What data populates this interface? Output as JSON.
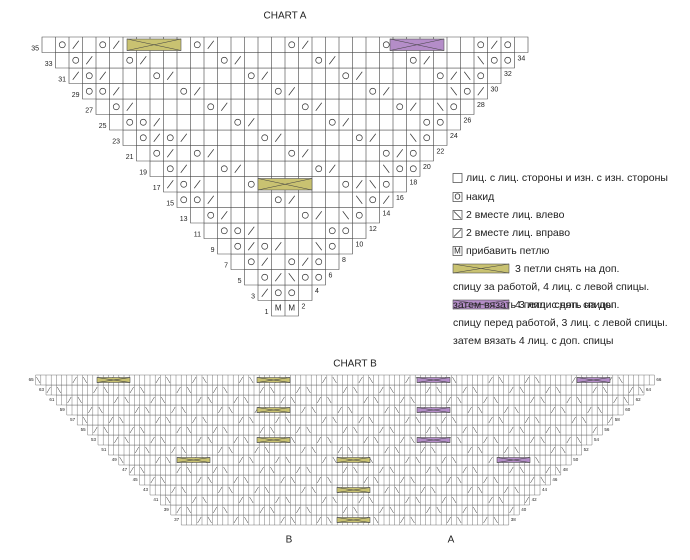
{
  "chart_a": {
    "title": "CHART A",
    "rows_left": [
      "1",
      "3",
      "5",
      "7",
      "9",
      "11",
      "13",
      "15",
      "17",
      "19",
      "21",
      "23",
      "25",
      "27",
      "29",
      "31",
      "33",
      "35"
    ],
    "rows_right": [
      "2",
      "4",
      "6",
      "8",
      "10",
      "12",
      "14",
      "16",
      "18",
      "20",
      "22",
      "24",
      "26",
      "28",
      "30",
      "32",
      "34"
    ],
    "cell_marks": [
      "M",
      "M"
    ]
  },
  "legend": [
    {
      "text": "лиц. с лиц. стороны и изн. с изн. стороны"
    },
    {
      "symbol": "O",
      "text": "накид"
    },
    {
      "text": "2 вместе лиц. влево"
    },
    {
      "text": "2 вместе лиц. вправо"
    },
    {
      "symbol": "M",
      "text": "прибавить петлю"
    },
    {
      "lines": [
        "3 петли снять на доп.",
        "спицу за работой, 4 лиц. с левой спицы.",
        "затем вязать 3 лиц. с доп. спицы"
      ]
    },
    {
      "lines": [
        "4 петли снять на доп.",
        "спицу перед работой, 3 лиц. с левой спицы.",
        "затем вязать 4 лиц. с доп. спицы"
      ]
    }
  ],
  "chart_b": {
    "title": "CHART B",
    "rows_left": [
      "37",
      "39",
      "41",
      "43",
      "45",
      "47",
      "49",
      "51",
      "53",
      "55",
      "57",
      "59",
      "61",
      "63",
      "65"
    ],
    "rows_right": [
      "38",
      "40",
      "42",
      "44",
      "46",
      "48",
      "50",
      "52",
      "54",
      "56",
      "58",
      "60",
      "62",
      "64",
      "66"
    ],
    "bottom_labels": [
      "B",
      "A"
    ]
  }
}
